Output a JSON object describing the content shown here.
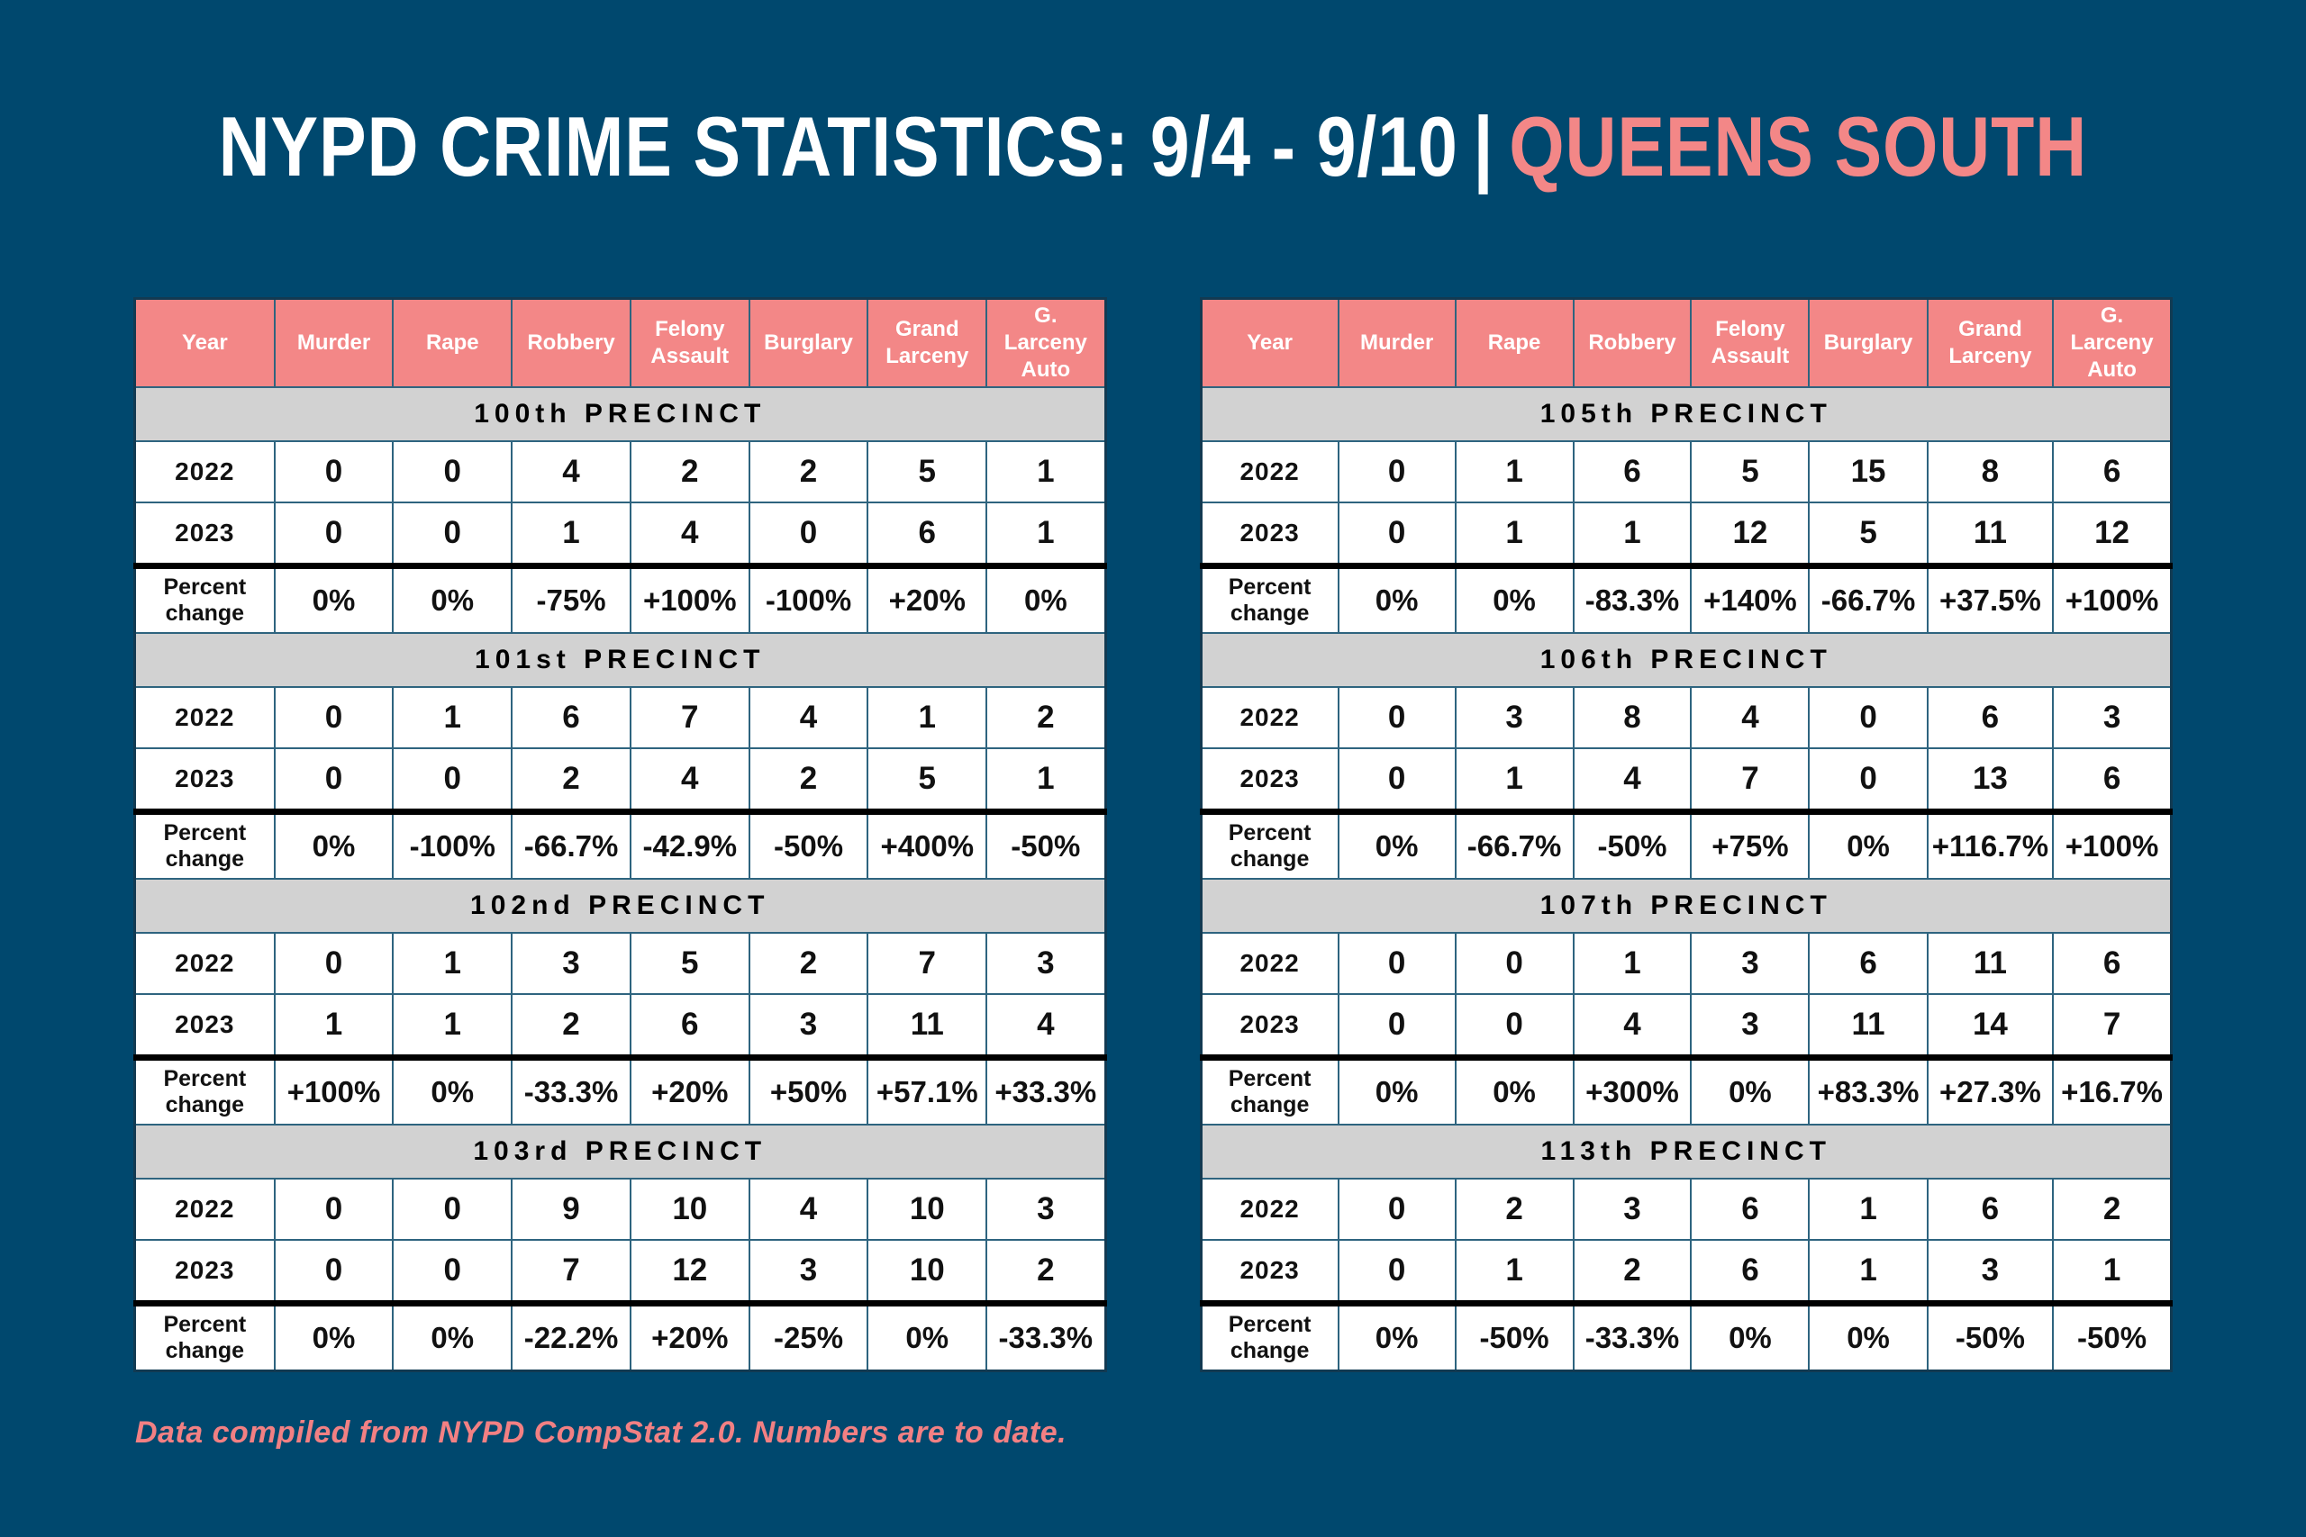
{
  "header": {
    "title": "NYPD CRIME STATISTICS: 9/4 - 9/10",
    "separator": "|",
    "region": "QUEENS SOUTH"
  },
  "footer": {
    "note": "Data compiled from NYPD CompStat 2.0. Numbers are to date."
  },
  "colors": {
    "background": "#00486E",
    "accent_salmon": "#F38787",
    "header_text": "#FFFFFF",
    "precinct_band_gray": "#D2D2D2",
    "cell_border_teal": "#2E647F",
    "divider_black": "#000000"
  },
  "chart_data": {
    "type": "table",
    "title": "NYPD CRIME STATISTICS: 9/4 - 9/10 | QUEENS SOUTH",
    "columns": [
      "Year",
      "Murder",
      "Rape",
      "Robbery",
      "Felony Assault",
      "Burglary",
      "Grand Larceny",
      "G. Larceny Auto"
    ],
    "tables": [
      {
        "precincts": [
          {
            "name": "100th PRECINCT",
            "rows": [
              {
                "label": "2022",
                "values": [
                  "0",
                  "0",
                  "4",
                  "2",
                  "2",
                  "5",
                  "1"
                ]
              },
              {
                "label": "2023",
                "values": [
                  "0",
                  "0",
                  "1",
                  "4",
                  "0",
                  "6",
                  "1"
                ]
              },
              {
                "label": "Percent change",
                "values": [
                  "0%",
                  "0%",
                  "-75%",
                  "+100%",
                  "-100%",
                  "+20%",
                  "0%"
                ]
              }
            ]
          },
          {
            "name": "101st PRECINCT",
            "rows": [
              {
                "label": "2022",
                "values": [
                  "0",
                  "1",
                  "6",
                  "7",
                  "4",
                  "1",
                  "2"
                ]
              },
              {
                "label": "2023",
                "values": [
                  "0",
                  "0",
                  "2",
                  "4",
                  "2",
                  "5",
                  "1"
                ]
              },
              {
                "label": "Percent change",
                "values": [
                  "0%",
                  "-100%",
                  "-66.7%",
                  "-42.9%",
                  "-50%",
                  "+400%",
                  "-50%"
                ]
              }
            ]
          },
          {
            "name": "102nd PRECINCT",
            "rows": [
              {
                "label": "2022",
                "values": [
                  "0",
                  "1",
                  "3",
                  "5",
                  "2",
                  "7",
                  "3"
                ]
              },
              {
                "label": "2023",
                "values": [
                  "1",
                  "1",
                  "2",
                  "6",
                  "3",
                  "11",
                  "4"
                ]
              },
              {
                "label": "Percent change",
                "values": [
                  "+100%",
                  "0%",
                  "-33.3%",
                  "+20%",
                  "+50%",
                  "+57.1%",
                  "+33.3%"
                ]
              }
            ]
          },
          {
            "name": "103rd PRECINCT",
            "rows": [
              {
                "label": "2022",
                "values": [
                  "0",
                  "0",
                  "9",
                  "10",
                  "4",
                  "10",
                  "3"
                ]
              },
              {
                "label": "2023",
                "values": [
                  "0",
                  "0",
                  "7",
                  "12",
                  "3",
                  "10",
                  "2"
                ]
              },
              {
                "label": "Percent change",
                "values": [
                  "0%",
                  "0%",
                  "-22.2%",
                  "+20%",
                  "-25%",
                  "0%",
                  "-33.3%"
                ]
              }
            ]
          }
        ]
      },
      {
        "precincts": [
          {
            "name": "105th PRECINCT",
            "rows": [
              {
                "label": "2022",
                "values": [
                  "0",
                  "1",
                  "6",
                  "5",
                  "15",
                  "8",
                  "6"
                ]
              },
              {
                "label": "2023",
                "values": [
                  "0",
                  "1",
                  "1",
                  "12",
                  "5",
                  "11",
                  "12"
                ]
              },
              {
                "label": "Percent change",
                "values": [
                  "0%",
                  "0%",
                  "-83.3%",
                  "+140%",
                  "-66.7%",
                  "+37.5%",
                  "+100%"
                ]
              }
            ]
          },
          {
            "name": "106th PRECINCT",
            "rows": [
              {
                "label": "2022",
                "values": [
                  "0",
                  "3",
                  "8",
                  "4",
                  "0",
                  "6",
                  "3"
                ]
              },
              {
                "label": "2023",
                "values": [
                  "0",
                  "1",
                  "4",
                  "7",
                  "0",
                  "13",
                  "6"
                ]
              },
              {
                "label": "Percent change",
                "values": [
                  "0%",
                  "-66.7%",
                  "-50%",
                  "+75%",
                  "0%",
                  "+116.7%",
                  "+100%"
                ]
              }
            ]
          },
          {
            "name": "107th PRECINCT",
            "rows": [
              {
                "label": "2022",
                "values": [
                  "0",
                  "0",
                  "1",
                  "3",
                  "6",
                  "11",
                  "6"
                ]
              },
              {
                "label": "2023",
                "values": [
                  "0",
                  "0",
                  "4",
                  "3",
                  "11",
                  "14",
                  "7"
                ]
              },
              {
                "label": "Percent change",
                "values": [
                  "0%",
                  "0%",
                  "+300%",
                  "0%",
                  "+83.3%",
                  "+27.3%",
                  "+16.7%"
                ]
              }
            ]
          },
          {
            "name": "113th PRECINCT",
            "rows": [
              {
                "label": "2022",
                "values": [
                  "0",
                  "2",
                  "3",
                  "6",
                  "1",
                  "6",
                  "2"
                ]
              },
              {
                "label": "2023",
                "values": [
                  "0",
                  "1",
                  "2",
                  "6",
                  "1",
                  "3",
                  "1"
                ]
              },
              {
                "label": "Percent change",
                "values": [
                  "0%",
                  "-50%",
                  "-33.3%",
                  "0%",
                  "0%",
                  "-50%",
                  "-50%"
                ]
              }
            ]
          }
        ]
      }
    ]
  }
}
